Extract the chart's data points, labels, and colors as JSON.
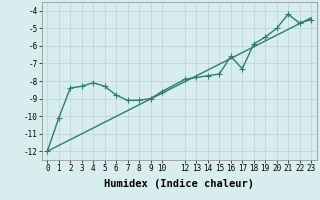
{
  "line1_x": [
    0,
    1,
    2,
    3,
    4,
    5,
    6,
    7,
    8,
    9,
    10,
    12,
    13,
    14,
    15,
    16,
    17,
    18,
    19,
    20,
    21,
    22,
    23
  ],
  "line1_y": [
    -12.0,
    -10.1,
    -8.4,
    -8.3,
    -8.1,
    -8.3,
    -8.8,
    -9.1,
    -9.1,
    -9.0,
    -8.6,
    -7.9,
    -7.8,
    -7.7,
    -7.6,
    -6.6,
    -7.3,
    -5.9,
    -5.5,
    -5.0,
    -4.2,
    -4.7,
    -4.5
  ],
  "line2_x": [
    0,
    23
  ],
  "line2_y": [
    -12.0,
    -4.4
  ],
  "line_color": "#2e7d6e",
  "marker": "D",
  "markersize": 2.5,
  "linewidth": 1.0,
  "xlabel": "Humidex (Indice chaleur)",
  "xlim": [
    -0.5,
    23.5
  ],
  "ylim": [
    -12.5,
    -3.5
  ],
  "yticks": [
    -12,
    -11,
    -10,
    -9,
    -8,
    -7,
    -6,
    -5,
    -4
  ],
  "xticks": [
    0,
    1,
    2,
    3,
    4,
    5,
    6,
    7,
    8,
    9,
    10,
    12,
    13,
    14,
    15,
    16,
    17,
    18,
    19,
    20,
    21,
    22,
    23
  ],
  "xtick_labels": [
    "0",
    "1",
    "2",
    "3",
    "4",
    "5",
    "6",
    "7",
    "8",
    "9",
    "10",
    "12",
    "13",
    "14",
    "15",
    "16",
    "17",
    "18",
    "19",
    "20",
    "21",
    "22",
    "23"
  ],
  "bg_color": "#d8eeee",
  "grid_color": "#b8d4d4",
  "tick_fontsize": 5.5,
  "xlabel_fontsize": 7.5
}
